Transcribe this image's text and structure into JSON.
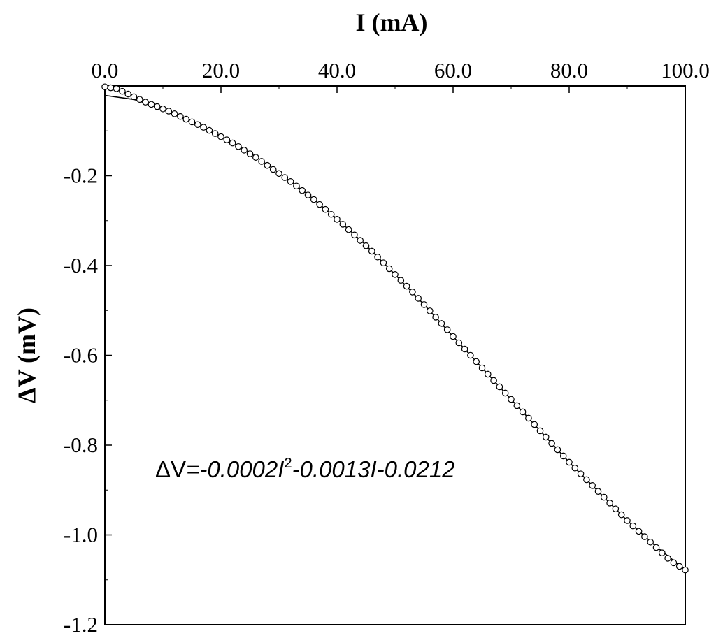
{
  "chart_data": {
    "type": "scatter",
    "xlabel": "I (mA)",
    "ylabel": "ΔV (mV)",
    "x_axis_position": "top",
    "xlim": [
      0,
      100
    ],
    "ylim": [
      -1.2,
      0
    ],
    "x_ticks": [
      0,
      20,
      40,
      60,
      80,
      100
    ],
    "x_tick_labels": [
      "0.0",
      "20.0",
      "40.0",
      "60.0",
      "80.0",
      "100.0"
    ],
    "y_ticks": [
      -0.2,
      -0.4,
      -0.6,
      -0.8,
      -1.0,
      -1.2
    ],
    "y_tick_labels": [
      "-0.2",
      "-0.4",
      "-0.6",
      "-0.8",
      "-1.0",
      "-1.2"
    ],
    "grid": false,
    "legend": "none",
    "annotation": {
      "lhs": "ΔV",
      "mid": "=-0.0002",
      "power": "2",
      "rhs": "-0.0013I-0.0212"
    },
    "series": [
      {
        "kind": "points",
        "marker": "open-circle",
        "x": [
          0,
          1,
          2,
          3,
          4,
          5,
          6,
          7,
          8,
          9,
          10,
          11,
          12,
          13,
          14,
          15,
          16,
          17,
          18,
          19,
          20,
          21,
          22,
          23,
          24,
          25,
          26,
          27,
          28,
          29,
          30,
          31,
          32,
          33,
          34,
          35,
          36,
          37,
          38,
          39,
          40,
          41,
          42,
          43,
          44,
          45,
          46,
          47,
          48,
          49,
          50,
          51,
          52,
          53,
          54,
          55,
          56,
          57,
          58,
          59,
          60,
          61,
          62,
          63,
          64,
          65,
          66,
          67,
          68,
          69,
          70,
          71,
          72,
          73,
          74,
          75,
          76,
          77,
          78,
          79,
          80,
          81,
          82,
          83,
          84,
          85,
          86,
          87,
          88,
          89,
          90,
          91,
          92,
          93,
          94,
          95,
          96,
          97,
          98,
          99,
          100
        ],
        "y": [
          -0.002,
          -0.004,
          -0.006,
          -0.012,
          -0.018,
          -0.024,
          -0.03,
          -0.036,
          -0.041,
          -0.046,
          -0.051,
          -0.056,
          -0.062,
          -0.068,
          -0.074,
          -0.08,
          -0.086,
          -0.092,
          -0.099,
          -0.106,
          -0.113,
          -0.12,
          -0.127,
          -0.135,
          -0.143,
          -0.151,
          -0.159,
          -0.168,
          -0.177,
          -0.186,
          -0.195,
          -0.204,
          -0.213,
          -0.223,
          -0.233,
          -0.243,
          -0.253,
          -0.264,
          -0.275,
          -0.286,
          -0.297,
          -0.308,
          -0.32,
          -0.332,
          -0.344,
          -0.356,
          -0.368,
          -0.381,
          -0.394,
          -0.407,
          -0.42,
          -0.433,
          -0.446,
          -0.459,
          -0.473,
          -0.487,
          -0.501,
          -0.515,
          -0.529,
          -0.543,
          -0.558,
          -0.572,
          -0.586,
          -0.6,
          -0.614,
          -0.628,
          -0.642,
          -0.656,
          -0.67,
          -0.684,
          -0.698,
          -0.712,
          -0.726,
          -0.74,
          -0.754,
          -0.768,
          -0.782,
          -0.796,
          -0.81,
          -0.824,
          -0.838,
          -0.851,
          -0.864,
          -0.877,
          -0.89,
          -0.903,
          -0.916,
          -0.929,
          -0.942,
          -0.955,
          -0.968,
          -0.98,
          -0.992,
          -1.004,
          -1.016,
          -1.028,
          -1.04,
          -1.052,
          -1.062,
          -1.07,
          -1.078
        ]
      },
      {
        "kind": "fit-line",
        "x": [
          0,
          5,
          10,
          15,
          20,
          25,
          30,
          35,
          40,
          45,
          50,
          55,
          60,
          65,
          70,
          75,
          80,
          85,
          90,
          95,
          100
        ],
        "y": [
          -0.021,
          -0.03,
          -0.051,
          -0.081,
          -0.112,
          -0.149,
          -0.193,
          -0.242,
          -0.296,
          -0.355,
          -0.42,
          -0.487,
          -0.558,
          -0.628,
          -0.698,
          -0.768,
          -0.838,
          -0.903,
          -0.968,
          -1.026,
          -1.078
        ]
      }
    ]
  }
}
